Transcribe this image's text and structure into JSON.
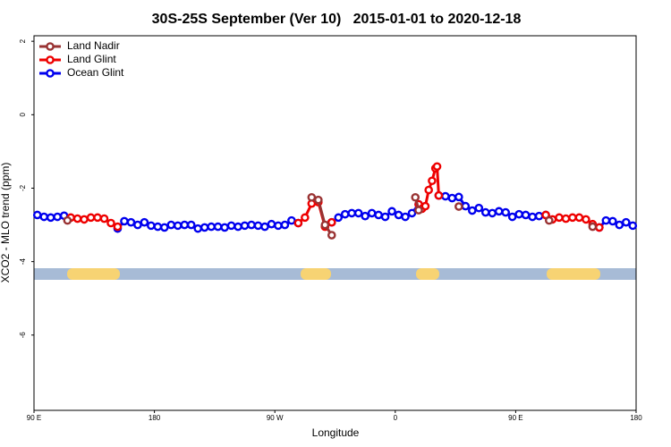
{
  "chart_data": {
    "type": "line",
    "title": "30S-25S September (Ver 10)   2015-01-01 to 2020-12-18",
    "x_label": "Longitude",
    "y_label": "XCO2 - MLO trend (ppm)",
    "xlim": [
      90,
      540
    ],
    "ylim": [
      -8.05,
      2.15
    ],
    "xticks": [
      {
        "value": 90,
        "label": "90 E"
      },
      {
        "value": 180,
        "label": "180"
      },
      {
        "value": 270,
        "label": "90 W"
      },
      {
        "value": 360,
        "label": "0"
      },
      {
        "value": 450,
        "label": "90 E"
      },
      {
        "value": 540,
        "label": "180"
      }
    ],
    "yticks": [
      -6,
      -4,
      -2,
      0,
      2
    ],
    "legend": "top-left",
    "series": [
      {
        "name": "Land Nadir",
        "color": "#993333",
        "x": [
          115,
          null,
          297.5,
          302.5,
          307.5,
          312.5,
          null,
          375,
          377.5,
          null,
          407.5,
          null,
          475,
          null,
          507.5
        ],
        "values": [
          -2.88,
          null,
          -2.25,
          -2.32,
          -3.0,
          -3.28,
          null,
          -2.25,
          -2.6,
          null,
          -2.5,
          null,
          -2.88,
          null,
          -3.05
        ]
      },
      {
        "name": "Land Glint",
        "color": "#ee0000",
        "x": [
          117.5,
          122.5,
          127.5,
          132.5,
          137.5,
          142.5,
          147.5,
          152.5,
          null,
          287.5,
          292.5,
          297.5,
          302.5,
          307.5,
          312.5,
          null,
          377.5,
          380,
          382.5,
          385,
          387.5,
          390,
          391.25,
          392.5,
          null,
          472.5,
          477.5,
          482.5,
          487.5,
          492.5,
          497.5,
          502.5,
          507.5,
          512.5
        ],
        "values": [
          -2.8,
          -2.83,
          -2.85,
          -2.8,
          -2.8,
          -2.83,
          -2.95,
          -3.05,
          null,
          -2.95,
          -2.8,
          -2.42,
          -2.38,
          -3.05,
          -2.93,
          null,
          -2.44,
          -2.56,
          -2.49,
          -2.05,
          -1.8,
          -1.46,
          -1.41,
          -2.2,
          null,
          -2.73,
          -2.85,
          -2.8,
          -2.83,
          -2.8,
          -2.8,
          -2.85,
          -2.98,
          -3.07
        ]
      },
      {
        "name": "Ocean Glint",
        "color": "#0000ee",
        "x": [
          92.5,
          97.5,
          102.5,
          107.5,
          112.5,
          null,
          152.5,
          157.5,
          162.5,
          167.5,
          172.5,
          177.5,
          182.5,
          187.5,
          192.5,
          197.5,
          202.5,
          207.5,
          212.5,
          217.5,
          222.5,
          227.5,
          232.5,
          237.5,
          242.5,
          247.5,
          252.5,
          257.5,
          262.5,
          267.5,
          272.5,
          277.5,
          282.5,
          287.5,
          null,
          312.5,
          317.5,
          322.5,
          327.5,
          332.5,
          337.5,
          342.5,
          347.5,
          352.5,
          357.5,
          362.5,
          367.5,
          372.5,
          377.5,
          null,
          392.5,
          397.5,
          402.5,
          407.5,
          412.5,
          417.5,
          422.5,
          427.5,
          432.5,
          437.5,
          442.5,
          447.5,
          452.5,
          457.5,
          462.5,
          467.5,
          472.5,
          null,
          512.5,
          517.5,
          522.5,
          527.5,
          532.5,
          537.5
        ],
        "values": [
          -2.73,
          -2.78,
          -2.8,
          -2.78,
          -2.75,
          null,
          -3.1,
          -2.9,
          -2.93,
          -3.0,
          -2.93,
          -3.02,
          -3.05,
          -3.07,
          -3.0,
          -3.02,
          -3.0,
          -3.0,
          -3.1,
          -3.07,
          -3.05,
          -3.05,
          -3.07,
          -3.02,
          -3.05,
          -3.02,
          -3.0,
          -3.02,
          -3.05,
          -2.98,
          -3.02,
          -3.0,
          -2.88,
          -2.95,
          null,
          -2.93,
          -2.8,
          -2.71,
          -2.68,
          -2.68,
          -2.76,
          -2.68,
          -2.73,
          -2.78,
          -2.63,
          -2.73,
          -2.78,
          -2.68,
          -2.44,
          null,
          -2.2,
          -2.22,
          -2.27,
          -2.24,
          -2.49,
          -2.61,
          -2.54,
          -2.66,
          -2.68,
          -2.63,
          -2.66,
          -2.78,
          -2.71,
          -2.73,
          -2.78,
          -2.76,
          -2.73,
          null,
          -3.07,
          -2.88,
          -2.9,
          -3.0,
          -2.93,
          -3.02
        ]
      }
    ]
  }
}
